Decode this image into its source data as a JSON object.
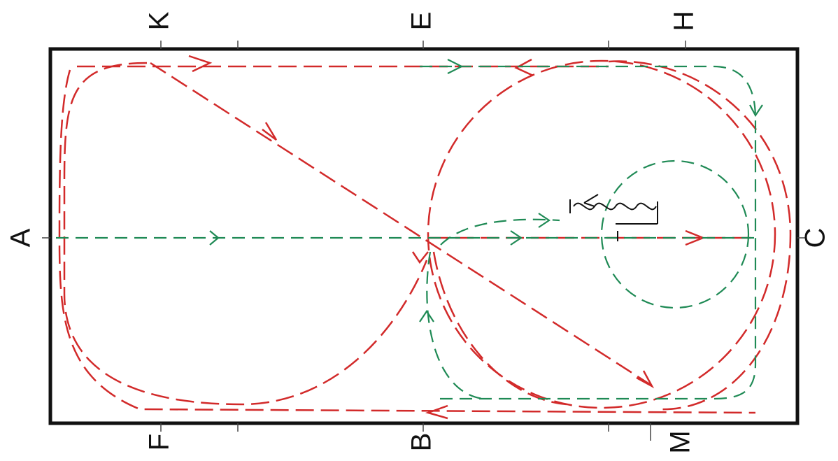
{
  "arena": {
    "left": "A",
    "right": "C",
    "top": [
      "K",
      "E",
      "H"
    ],
    "bottom": [
      "F",
      "B",
      "M"
    ]
  }
}
